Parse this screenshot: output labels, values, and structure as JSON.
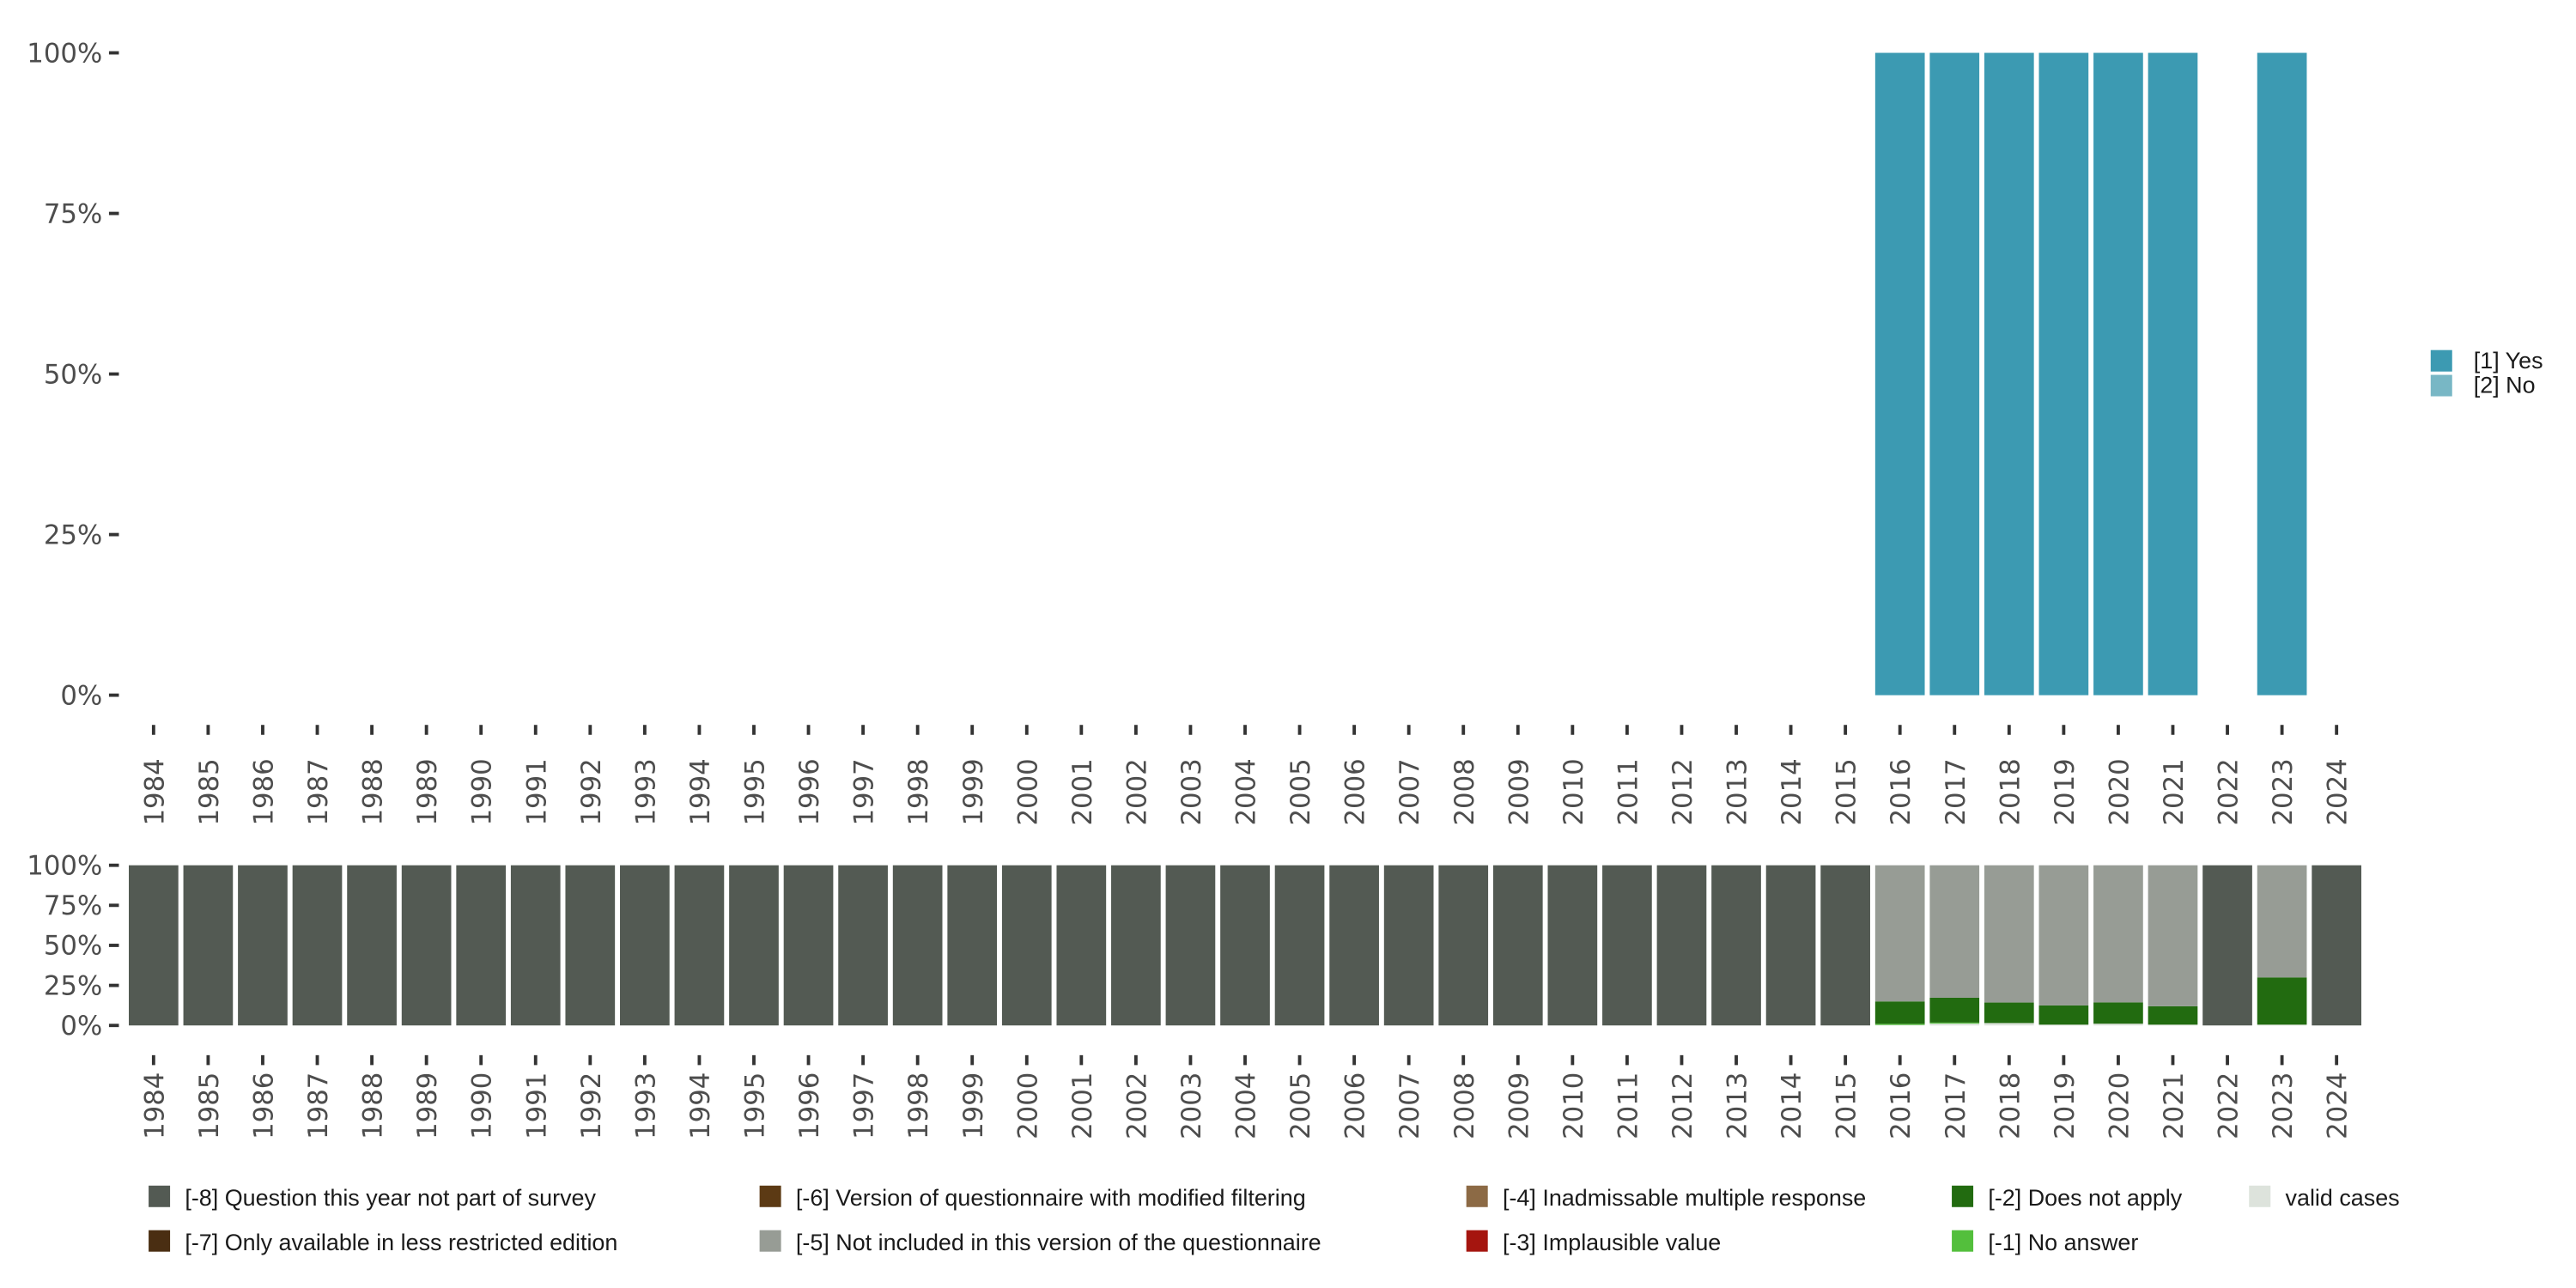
{
  "chart_data": [
    {
      "type": "bar",
      "stacked": true,
      "title": "",
      "xlabel": "",
      "ylabel": "",
      "ylim": [
        0,
        100
      ],
      "yticks": [
        "0%",
        "25%",
        "50%",
        "75%",
        "100%"
      ],
      "categories": [
        "1984",
        "1985",
        "1986",
        "1987",
        "1988",
        "1989",
        "1990",
        "1991",
        "1992",
        "1993",
        "1994",
        "1995",
        "1996",
        "1997",
        "1998",
        "1999",
        "2000",
        "2001",
        "2002",
        "2003",
        "2004",
        "2005",
        "2006",
        "2007",
        "2008",
        "2009",
        "2010",
        "2011",
        "2012",
        "2013",
        "2014",
        "2015",
        "2016",
        "2017",
        "2018",
        "2019",
        "2020",
        "2021",
        "2022",
        "2023",
        "2024"
      ],
      "series": [
        {
          "name": "[1] Yes",
          "color": "#3c9ab2",
          "values": [
            0,
            0,
            0,
            0,
            0,
            0,
            0,
            0,
            0,
            0,
            0,
            0,
            0,
            0,
            0,
            0,
            0,
            0,
            0,
            0,
            0,
            0,
            0,
            0,
            0,
            0,
            0,
            0,
            0,
            0,
            0,
            0,
            100,
            100,
            100,
            100,
            100,
            100,
            0,
            100,
            0
          ]
        },
        {
          "name": "[2] No",
          "color": "#78b7c5",
          "values": [
            0,
            0,
            0,
            0,
            0,
            0,
            0,
            0,
            0,
            0,
            0,
            0,
            0,
            0,
            0,
            0,
            0,
            0,
            0,
            0,
            0,
            0,
            0,
            0,
            0,
            0,
            0,
            0,
            0,
            0,
            0,
            0,
            0,
            0,
            0,
            0,
            0,
            0,
            0,
            0,
            0
          ]
        }
      ],
      "legend_position": "right"
    },
    {
      "type": "bar",
      "stacked": true,
      "ylim": [
        0,
        100
      ],
      "yticks": [
        "0%",
        "25%",
        "50%",
        "75%",
        "100%"
      ],
      "categories": [
        "1984",
        "1985",
        "1986",
        "1987",
        "1988",
        "1989",
        "1990",
        "1991",
        "1992",
        "1993",
        "1994",
        "1995",
        "1996",
        "1997",
        "1998",
        "1999",
        "2000",
        "2001",
        "2002",
        "2003",
        "2004",
        "2005",
        "2006",
        "2007",
        "2008",
        "2009",
        "2010",
        "2011",
        "2012",
        "2013",
        "2014",
        "2015",
        "2016",
        "2017",
        "2018",
        "2019",
        "2020",
        "2021",
        "2022",
        "2023",
        "2024"
      ],
      "series": [
        {
          "name": "valid cases",
          "color": "#dde3dc",
          "values": [
            0,
            0,
            0,
            0,
            0,
            0,
            0,
            0,
            0,
            0,
            0,
            0,
            0,
            0,
            0,
            0,
            0,
            0,
            0,
            0,
            0,
            0,
            0,
            0,
            0,
            0,
            0,
            0,
            0,
            0,
            0,
            0,
            0.3,
            1.2,
            1.5,
            0.5,
            1.1,
            0.5,
            0,
            0.5,
            0
          ]
        },
        {
          "name": "[-1] No answer",
          "color": "#53bf3c",
          "values": [
            0,
            0,
            0,
            0,
            0,
            0,
            0,
            0,
            0,
            0,
            0,
            0,
            0,
            0,
            0,
            0,
            0,
            0,
            0,
            0,
            0,
            0,
            0,
            0,
            0,
            0,
            0,
            0,
            0,
            0,
            0,
            0,
            0.7,
            0.6,
            0,
            0,
            0,
            0,
            0,
            0,
            0
          ]
        },
        {
          "name": "[-2] Does not apply",
          "color": "#226b10",
          "values": [
            0,
            0,
            0,
            0,
            0,
            0,
            0,
            0,
            0,
            0,
            0,
            0,
            0,
            0,
            0,
            0,
            0,
            0,
            0,
            0,
            0,
            0,
            0,
            0,
            0,
            0,
            0,
            0,
            0,
            0,
            0,
            0,
            14,
            15.5,
            12.8,
            12,
            13.3,
            11.5,
            0,
            29.5,
            0
          ]
        },
        {
          "name": "[-5] Not included in this version of the questionnaire",
          "color": "#979c95",
          "values": [
            0,
            0,
            0,
            0,
            0,
            0,
            0,
            0,
            0,
            0,
            0,
            0,
            0,
            0,
            0,
            0,
            0,
            0,
            0,
            0,
            0,
            0,
            0,
            0,
            0,
            0,
            0,
            0,
            0,
            0,
            0,
            0,
            85,
            82.7,
            85.7,
            87.5,
            85.6,
            88,
            0,
            70,
            0
          ]
        },
        {
          "name": "[-8] Question this year not part of survey",
          "color": "#535a53",
          "values": [
            100,
            100,
            100,
            100,
            100,
            100,
            100,
            100,
            100,
            100,
            100,
            100,
            100,
            100,
            100,
            100,
            100,
            100,
            100,
            100,
            100,
            100,
            100,
            100,
            100,
            100,
            100,
            100,
            100,
            100,
            100,
            100,
            0,
            0,
            0,
            0,
            0,
            0,
            100,
            0,
            100
          ]
        }
      ],
      "legend_position": "bottom"
    }
  ],
  "bottom_legend": [
    {
      "label": "[-8] Question this year not part of survey",
      "color": "#535a53"
    },
    {
      "label": "[-7] Only available in less restricted edition",
      "color": "#4a2e12"
    },
    {
      "label": "[-6] Version of questionnaire with modified filtering",
      "color": "#5c3a14"
    },
    {
      "label": "[-5] Not included in this version of the questionnaire",
      "color": "#979c95"
    },
    {
      "label": "[-4] Inadmissable multiple response",
      "color": "#8c6a45"
    },
    {
      "label": "[-3] Implausible value",
      "color": "#a5150f"
    },
    {
      "label": "[-2] Does not apply",
      "color": "#226b10"
    },
    {
      "label": "[-1] No answer",
      "color": "#53bf3c"
    },
    {
      "label": "valid cases",
      "color": "#dde3dc"
    }
  ]
}
